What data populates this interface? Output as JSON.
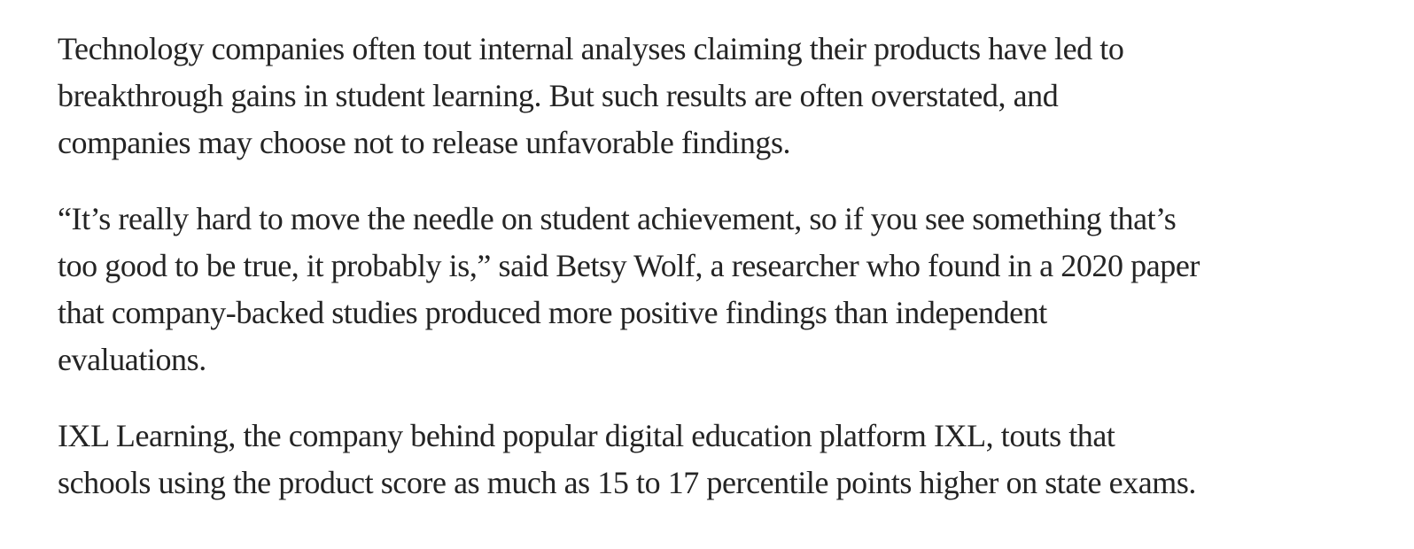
{
  "article": {
    "background_color": "#ffffff",
    "text_color": "#242424",
    "paragraphs": [
      {
        "lines": [
          "Technology companies often tout internal analyses claiming their products have led to",
          "breakthrough gains in student learning. But such results are often overstated, and",
          "companies may choose not to release unfavorable findings."
        ]
      },
      {
        "lines": [
          "“It’s really hard to move the needle on student achievement, so if you see something that’s",
          "too good to be true, it probably is,” said Betsy Wolf, a researcher who found in a 2020 paper",
          "that company-backed studies produced more positive findings than independent",
          "evaluations."
        ]
      },
      {
        "lines": [
          "IXL Learning, the company behind popular digital education platform IXL, touts that",
          "schools using the product score as much as 15 to 17 percentile points higher on state exams."
        ]
      }
    ]
  }
}
